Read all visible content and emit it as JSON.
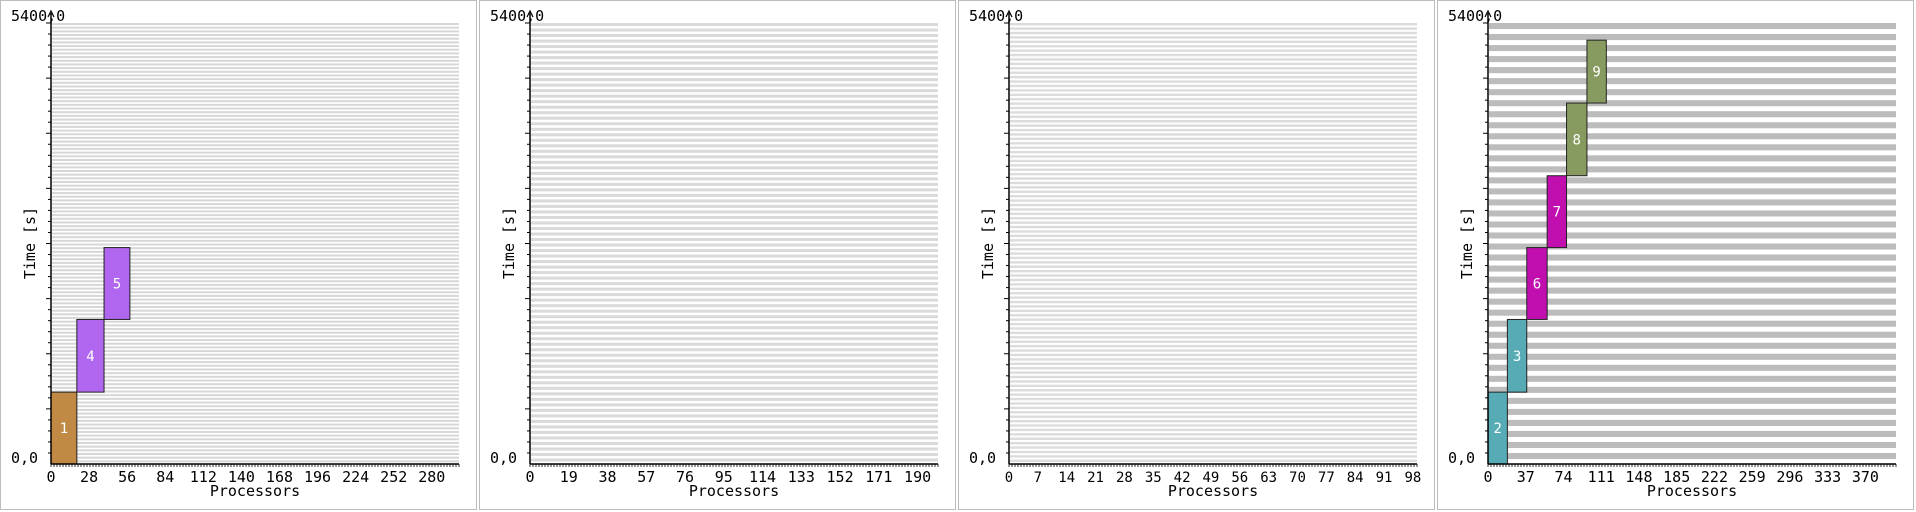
{
  "chart_data": [
    {
      "type": "bar",
      "ymax_label": "5400,0",
      "origin_label": "0,0",
      "xlabel": "Processors",
      "ylabel": "Time [s]",
      "xlim": [
        0,
        300
      ],
      "ylim": [
        0,
        5400
      ],
      "x_ticks": [
        0,
        28,
        56,
        84,
        112,
        140,
        168,
        196,
        224,
        252,
        280
      ],
      "row_count": 120,
      "row_color": "#d7d7d7",
      "jobs": [
        {
          "label": "1",
          "proc_start": 0,
          "proc_end": 19,
          "time_start": 0,
          "time_end": 880,
          "color": "#c08a45"
        },
        {
          "label": "4",
          "proc_start": 19,
          "proc_end": 39,
          "time_start": 880,
          "time_end": 1770,
          "color": "#b066ee"
        },
        {
          "label": "5",
          "proc_start": 39,
          "proc_end": 58,
          "time_start": 1770,
          "time_end": 2650,
          "color": "#b066ee"
        }
      ]
    },
    {
      "type": "bar",
      "ymax_label": "5400,0",
      "origin_label": "0,0",
      "xlabel": "Processors",
      "ylabel": "Time [s]",
      "xlim": [
        0,
        200
      ],
      "ylim": [
        0,
        5400
      ],
      "x_ticks": [
        0,
        19,
        38,
        57,
        76,
        95,
        114,
        133,
        152,
        171,
        190
      ],
      "row_count": 80,
      "row_color": "#dadada",
      "jobs": []
    },
    {
      "type": "bar",
      "ymax_label": "5400,0",
      "origin_label": "0,0",
      "xlabel": "Processors",
      "ylabel": "Time [s]",
      "xlim": [
        0,
        99
      ],
      "ylim": [
        0,
        5400
      ],
      "x_ticks": [
        0,
        7,
        14,
        21,
        28,
        35,
        42,
        49,
        56,
        63,
        70,
        77,
        84,
        91,
        98
      ],
      "row_count": 100,
      "row_color": "#dcdcdc",
      "jobs": []
    },
    {
      "type": "bar",
      "ymax_label": "5400,0",
      "origin_label": "0,0",
      "xlabel": "Processors",
      "ylabel": "Time [s]",
      "xlim": [
        0,
        400
      ],
      "ylim": [
        0,
        5400
      ],
      "x_ticks": [
        0,
        37,
        74,
        111,
        148,
        185,
        222,
        259,
        296,
        333,
        370
      ],
      "row_count": 40,
      "row_color": "#bcbcbc",
      "jobs": [
        {
          "label": "2",
          "proc_start": 0,
          "proc_end": 19,
          "time_start": 0,
          "time_end": 880,
          "color": "#56abb5"
        },
        {
          "label": "3",
          "proc_start": 19,
          "proc_end": 38,
          "time_start": 880,
          "time_end": 1770,
          "color": "#56abb5"
        },
        {
          "label": "6",
          "proc_start": 38,
          "proc_end": 58,
          "time_start": 1770,
          "time_end": 2650,
          "color": "#c10faf"
        },
        {
          "label": "7",
          "proc_start": 58,
          "proc_end": 77,
          "time_start": 2650,
          "time_end": 3530,
          "color": "#c10faf"
        },
        {
          "label": "8",
          "proc_start": 77,
          "proc_end": 97,
          "time_start": 3530,
          "time_end": 4420,
          "color": "#879a5f"
        },
        {
          "label": "9",
          "proc_start": 97,
          "proc_end": 116,
          "time_start": 4420,
          "time_end": 5190,
          "color": "#879a5f"
        }
      ]
    }
  ]
}
